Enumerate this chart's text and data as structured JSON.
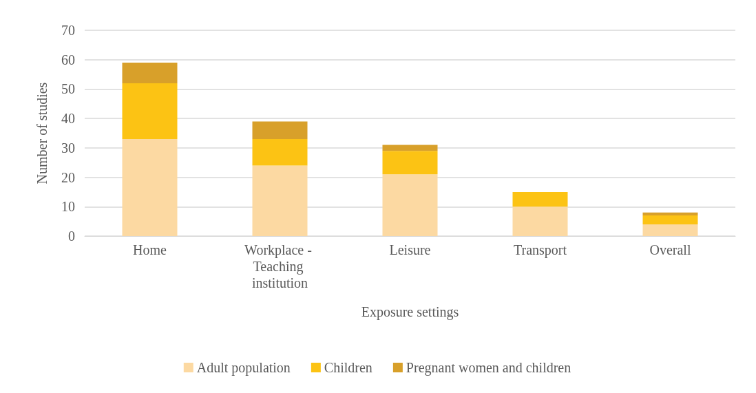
{
  "chart_data": {
    "type": "bar",
    "stacked": true,
    "xlabel": "Exposure settings",
    "ylabel": "Number of studies",
    "categories": [
      "Home",
      "Workplace - Teaching institution",
      "Leisure",
      "Transport",
      "Overall"
    ],
    "series": [
      {
        "name": "Adult population",
        "color": "#fcd9a2",
        "values": [
          33,
          24,
          21,
          10,
          4
        ]
      },
      {
        "name": "Children",
        "color": "#fcc314",
        "values": [
          19,
          9,
          8,
          5,
          3
        ]
      },
      {
        "name": "Pregnant women and children",
        "color": "#d8a02a",
        "values": [
          7,
          6,
          2,
          0,
          1
        ]
      }
    ],
    "ylim": [
      0,
      70
    ],
    "yticks": [
      0,
      10,
      20,
      30,
      40,
      50,
      60,
      70
    ],
    "grid": "y",
    "legend": "bottom"
  }
}
